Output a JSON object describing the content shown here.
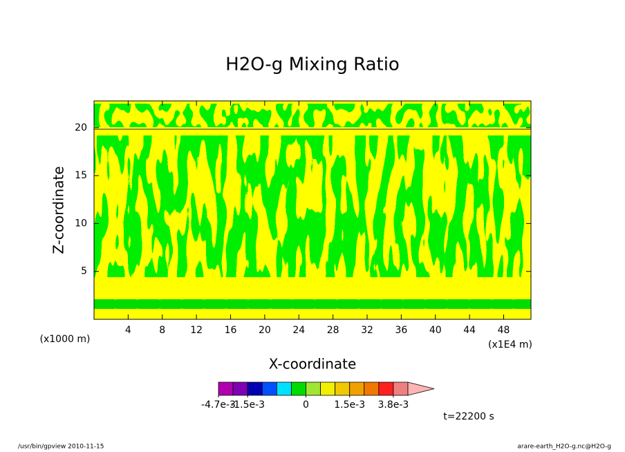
{
  "chart_data": {
    "type": "contour",
    "title": "H2O-g Mixing Ratio",
    "x_label": "X-coordinate",
    "y_label": "Z-coordinate",
    "x_unit_left": "(x1000 m)",
    "x_unit_right": "(x1E4 m)",
    "time_label": "t=22200 s",
    "footer_left": "/usr/bin/gpview  2010-11-15",
    "footer_right": "arare-earth_H2O-g.nc@H2O-g",
    "xlim": [
      0,
      51.2
    ],
    "ylim": [
      0,
      22.8
    ],
    "xticks": [
      4,
      8,
      12,
      16,
      20,
      24,
      28,
      32,
      36,
      40,
      44,
      48
    ],
    "yticks": [
      5,
      10,
      15,
      20
    ],
    "colorbar": {
      "colors": [
        "#b000b0",
        "#8000b4",
        "#0000b4",
        "#0050ff",
        "#00e0ff",
        "#00dc00",
        "#a0e632",
        "#f0f000",
        "#f0c800",
        "#f0a000",
        "#f07800",
        "#ff2020",
        "#f08080",
        "#ffb4b4"
      ],
      "levels": [
        -0.0047,
        -0.0031,
        -0.0015,
        -0.001,
        -0.0005,
        -0.0002,
        0,
        0.0005,
        0.001,
        0.0015,
        0.0023,
        0.003,
        0.0038
      ],
      "ticks": [
        {
          "value": -0.0047,
          "label": "-4.7e-3"
        },
        {
          "value": -0.0015,
          "label": "-1.5e-3"
        },
        0,
        {
          "value": 0.0015,
          "label": "1.5e-3"
        },
        {
          "value": 0.0038,
          "label": "3.8e-3"
        }
      ]
    }
  }
}
